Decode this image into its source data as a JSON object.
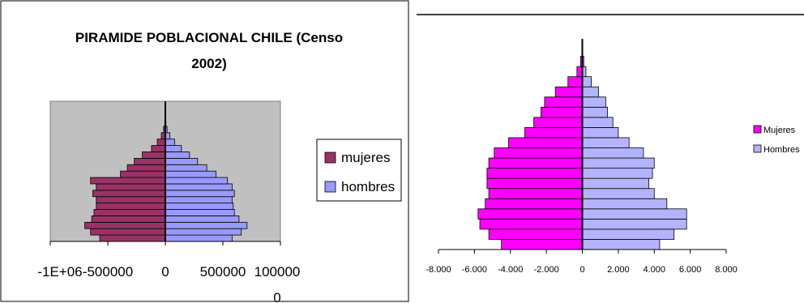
{
  "chart_data": [
    {
      "type": "bar",
      "orientation": "horizontal",
      "title_line1": "PIRAMIDE POBLACIONAL CHILE (Censo",
      "title_line2": "2002)",
      "xlim": [
        -1000000,
        1000000
      ],
      "x_tick_labels": [
        "-1E+06",
        "-500000",
        "0",
        "500000",
        "100000",
        "0"
      ],
      "series": [
        {
          "name": "mujeres",
          "color": "#993366",
          "values": [
            -570000,
            -650000,
            -700000,
            -640000,
            -620000,
            -600000,
            -600000,
            -630000,
            -600000,
            -650000,
            -390000,
            -330000,
            -270000,
            -200000,
            -120000,
            -70000,
            -35000,
            -15000,
            -5000
          ]
        },
        {
          "name": "hombres",
          "color": "#9999ff",
          "values": [
            580000,
            660000,
            710000,
            640000,
            600000,
            590000,
            580000,
            600000,
            580000,
            540000,
            440000,
            360000,
            280000,
            210000,
            140000,
            80000,
            40000,
            15000,
            5000
          ]
        }
      ],
      "plot_background": "#c0c0c0",
      "legend": "right"
    },
    {
      "type": "bar",
      "orientation": "horizontal",
      "xlim": [
        -8000,
        8000
      ],
      "x_tick_labels": [
        "-8.000",
        "-6.000",
        "-4.000",
        "-2.000",
        "0",
        "2.000",
        "4.000",
        "6.000",
        "8.000"
      ],
      "series": [
        {
          "name": "Mujeres",
          "color": "#ff00ff",
          "values": [
            -4500,
            -5200,
            -5700,
            -5800,
            -5400,
            -5200,
            -5300,
            -5300,
            -5200,
            -4900,
            -4100,
            -3200,
            -2700,
            -2300,
            -2100,
            -1500,
            -800,
            -300,
            -100,
            -20
          ]
        },
        {
          "name": "Hombres",
          "color": "#b3b3ff",
          "values": [
            4300,
            5100,
            5800,
            5800,
            4700,
            4000,
            3700,
            3900,
            4000,
            3400,
            2600,
            2000,
            1700,
            1400,
            1300,
            900,
            500,
            200,
            80,
            20
          ]
        }
      ],
      "legend": "right"
    }
  ]
}
